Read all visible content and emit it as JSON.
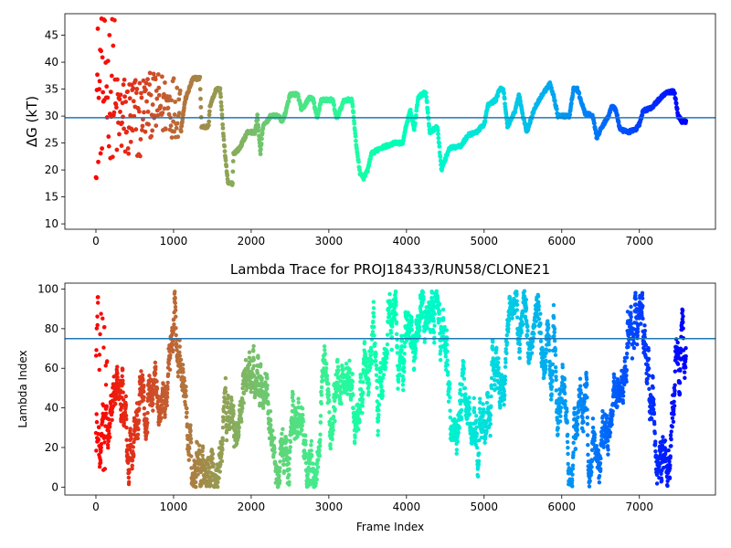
{
  "chart_data": [
    {
      "type": "scatter",
      "title": "",
      "xlabel": "",
      "ylabel": "ΔG (kT)",
      "xlim": [
        -400,
        7980
      ],
      "ylim": [
        9,
        49
      ],
      "xticks": [
        0,
        1000,
        2000,
        3000,
        4000,
        5000,
        6000,
        7000
      ],
      "yticks": [
        10,
        15,
        20,
        25,
        30,
        35,
        40,
        45
      ],
      "hline": 29.7,
      "hline_color": "#1f77b4",
      "colormap": "rainbow (red at frame 0 → violet at frame ~7600)",
      "trace_profile": [
        [
          1100,
          28
        ],
        [
          1150,
          33
        ],
        [
          1250,
          37
        ],
        [
          1340,
          37
        ],
        [
          1360,
          28
        ],
        [
          1450,
          28
        ],
        [
          1470,
          32
        ],
        [
          1550,
          35
        ],
        [
          1600,
          35
        ],
        [
          1650,
          25
        ],
        [
          1700,
          17.5
        ],
        [
          1760,
          17.5
        ],
        [
          1770,
          23
        ],
        [
          1850,
          24
        ],
        [
          1950,
          27
        ],
        [
          2050,
          27
        ],
        [
          2080,
          30
        ],
        [
          2120,
          23
        ],
        [
          2150,
          28
        ],
        [
          2250,
          30
        ],
        [
          2350,
          30
        ],
        [
          2400,
          29
        ],
        [
          2450,
          31
        ],
        [
          2500,
          34
        ],
        [
          2600,
          34
        ],
        [
          2650,
          31
        ],
        [
          2750,
          33.5
        ],
        [
          2800,
          33
        ],
        [
          2850,
          29.5
        ],
        [
          2900,
          33
        ],
        [
          3050,
          33
        ],
        [
          3100,
          29.5
        ],
        [
          3200,
          33
        ],
        [
          3300,
          33
        ],
        [
          3350,
          25
        ],
        [
          3400,
          19.5
        ],
        [
          3450,
          18.5
        ],
        [
          3500,
          20
        ],
        [
          3550,
          23
        ],
        [
          3650,
          24
        ],
        [
          3750,
          24.5
        ],
        [
          3850,
          25
        ],
        [
          3950,
          25
        ],
        [
          4000,
          28.5
        ],
        [
          4050,
          31
        ],
        [
          4100,
          27.5
        ],
        [
          4150,
          33.5
        ],
        [
          4250,
          34.5
        ],
        [
          4300,
          27
        ],
        [
          4350,
          27.5
        ],
        [
          4400,
          28
        ],
        [
          4450,
          20
        ],
        [
          4500,
          22
        ],
        [
          4550,
          24
        ],
        [
          4700,
          24.5
        ],
        [
          4800,
          26.5
        ],
        [
          4900,
          27
        ],
        [
          5000,
          28.5
        ],
        [
          5050,
          32
        ],
        [
          5150,
          33
        ],
        [
          5200,
          35
        ],
        [
          5250,
          35
        ],
        [
          5300,
          28
        ],
        [
          5400,
          31
        ],
        [
          5450,
          34
        ],
        [
          5500,
          30
        ],
        [
          5550,
          27
        ],
        [
          5650,
          31.5
        ],
        [
          5750,
          34
        ],
        [
          5850,
          36
        ],
        [
          5900,
          33.5
        ],
        [
          5950,
          30
        ],
        [
          6100,
          30
        ],
        [
          6150,
          35
        ],
        [
          6200,
          35
        ],
        [
          6300,
          30.5
        ],
        [
          6400,
          30
        ],
        [
          6450,
          26
        ],
        [
          6500,
          27.5
        ],
        [
          6600,
          30
        ],
        [
          6650,
          32
        ],
        [
          6700,
          31
        ],
        [
          6750,
          27.5
        ],
        [
          6850,
          27
        ],
        [
          6950,
          27.5
        ],
        [
          7000,
          28.5
        ],
        [
          7050,
          31
        ],
        [
          7150,
          31.5
        ],
        [
          7250,
          33
        ],
        [
          7350,
          34.5
        ],
        [
          7450,
          34.5
        ],
        [
          7500,
          30
        ],
        [
          7550,
          29
        ],
        [
          7600,
          29
        ]
      ]
    },
    {
      "type": "scatter",
      "title": "Lambda Trace for PROJ18433/RUN58/CLONE21",
      "xlabel": "Frame Index",
      "ylabel": "Lambda Index",
      "xlim": [
        -400,
        7980
      ],
      "ylim": [
        -4,
        103
      ],
      "xticks": [
        0,
        1000,
        2000,
        3000,
        4000,
        5000,
        6000,
        7000
      ],
      "yticks": [
        0,
        20,
        40,
        60,
        80,
        100
      ],
      "hline": 75,
      "hline_color": "#1f77b4",
      "colormap": "rainbow (red at frame 0 → violet at frame ~7600)",
      "lambda_range": [
        0,
        99
      ],
      "frame_range": [
        0,
        7600
      ]
    }
  ]
}
